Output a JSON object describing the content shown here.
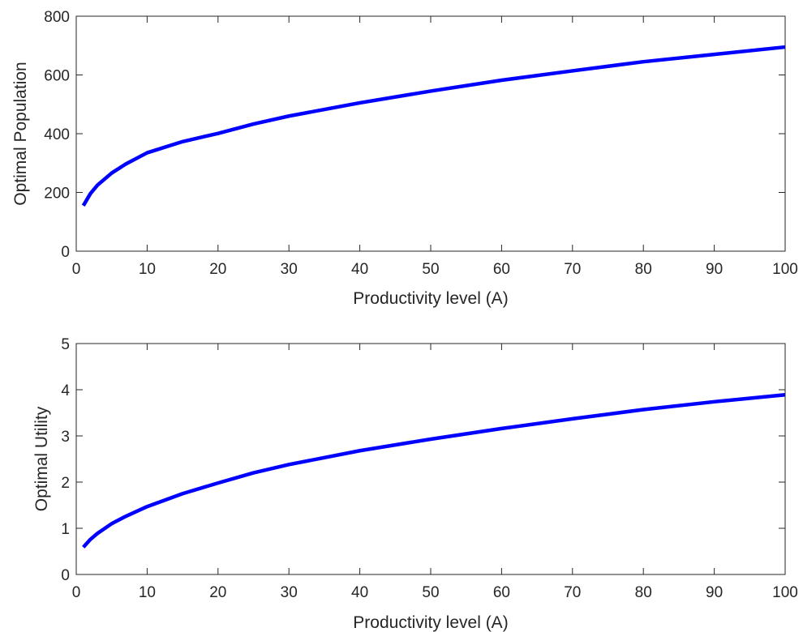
{
  "chart_data": [
    {
      "type": "line",
      "xlabel": "Productivity level (A)",
      "ylabel": "Optimal Population",
      "xlim": [
        0,
        100
      ],
      "ylim": [
        0,
        800
      ],
      "xticks": [
        0,
        10,
        20,
        30,
        40,
        50,
        60,
        70,
        80,
        90,
        100
      ],
      "yticks": [
        0,
        200,
        400,
        600,
        800
      ],
      "grid": false,
      "series": [
        {
          "color": "#0000ff",
          "x": [
            1,
            2,
            3,
            5,
            7,
            10,
            15,
            20,
            25,
            30,
            40,
            50,
            60,
            70,
            80,
            90,
            100
          ],
          "y": [
            155,
            196,
            225,
            266,
            297,
            335,
            373,
            401,
            433,
            460,
            505,
            545,
            582,
            614,
            645,
            670,
            695
          ]
        }
      ]
    },
    {
      "type": "line",
      "xlabel": "Productivity level (A)",
      "ylabel": "Optimal Utility",
      "xlim": [
        0,
        100
      ],
      "ylim": [
        0,
        5
      ],
      "xticks": [
        0,
        10,
        20,
        30,
        40,
        50,
        60,
        70,
        80,
        90,
        100
      ],
      "yticks": [
        0,
        1,
        2,
        3,
        4,
        5
      ],
      "grid": false,
      "series": [
        {
          "color": "#0000ff",
          "x": [
            1,
            2,
            3,
            5,
            7,
            10,
            15,
            20,
            25,
            30,
            40,
            50,
            60,
            70,
            80,
            90,
            100
          ],
          "y": [
            0.59,
            0.76,
            0.89,
            1.1,
            1.26,
            1.47,
            1.75,
            1.98,
            2.2,
            2.38,
            2.68,
            2.93,
            3.16,
            3.37,
            3.57,
            3.74,
            3.89
          ]
        }
      ]
    }
  ]
}
